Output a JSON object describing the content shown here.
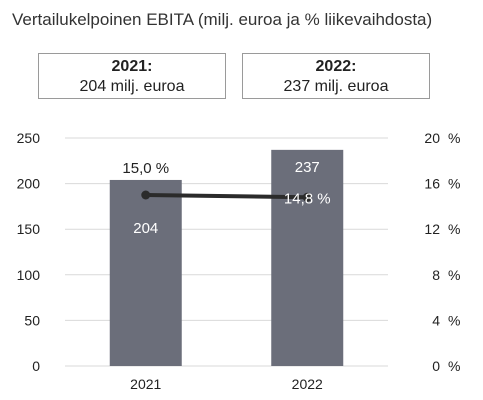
{
  "title": "Vertailukelpoinen EBITA (milj. euroa ja % liikevaihdosta)",
  "summary_boxes": [
    {
      "year_label": "2021:",
      "value_text": "204 milj. euroa"
    },
    {
      "year_label": "2022:",
      "value_text": "237 milj. euroa"
    }
  ],
  "colors": {
    "bar": "#6b6e7a",
    "line": "#2b2b2b",
    "grid": "#d9d9d9",
    "bar_label_light": "#ffffff",
    "text": "#222222"
  },
  "chart_data": {
    "type": "bar",
    "categories": [
      "2021",
      "2022"
    ],
    "series": [
      {
        "values": [
          204,
          237
        ],
        "axis": "left",
        "mark": "bar",
        "value_labels": [
          "204",
          "237"
        ]
      },
      {
        "values": [
          15.0,
          14.8
        ],
        "axis": "right",
        "mark": "line",
        "value_labels": [
          "15,0 %",
          "14,8 %"
        ]
      }
    ],
    "ylim": [
      0,
      250
    ],
    "y_ticks": [
      0,
      50,
      100,
      150,
      200,
      250
    ],
    "y2lim": [
      0,
      20
    ],
    "y2_ticks": [
      0,
      4,
      8,
      12,
      16,
      20
    ],
    "y2_tick_labels": [
      "0 %",
      "4 %",
      "8 %",
      "12 %",
      "16 %",
      "20 %"
    ],
    "grid": true,
    "xlabel": "",
    "ylabel": ""
  }
}
